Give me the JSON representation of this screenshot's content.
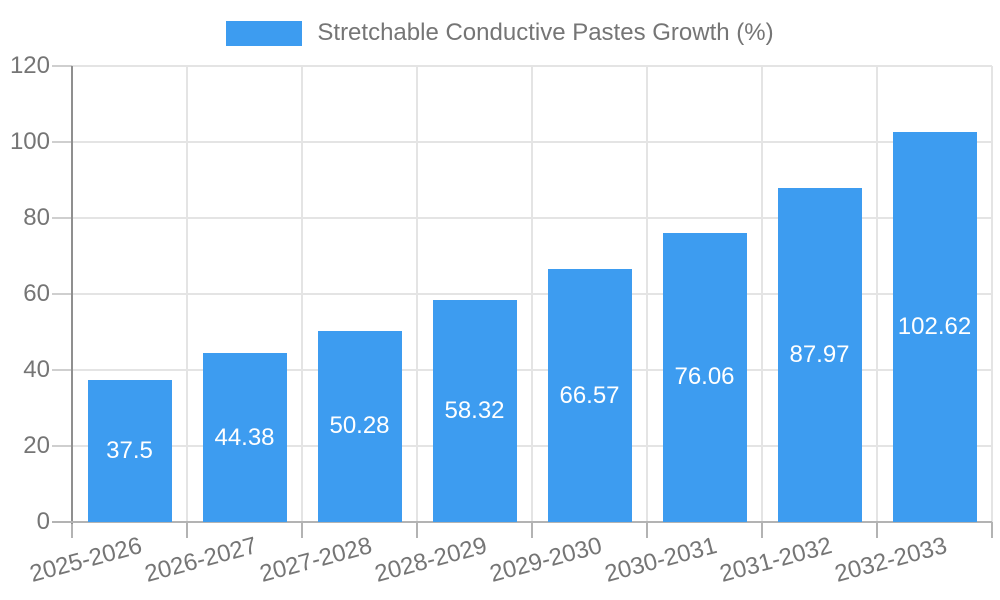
{
  "legend": {
    "label": "Stretchable Conductive Pastes Growth (%)"
  },
  "colors": {
    "bar": "#3d9cf0",
    "grid": "#e4e4e4",
    "y_axis_line": "#8f8f8f",
    "x_axis_line": "#b3b3b3",
    "y_tick": "#cfcfcf",
    "x_tick": "#b3b3b3",
    "axis_text": "#757575",
    "value_text": "#ffffff",
    "background": "#ffffff"
  },
  "chart_data": {
    "type": "bar",
    "title": "Stretchable Conductive Pastes Growth (%)",
    "categories": [
      "2025-2026",
      "2026-2027",
      "2027-2028",
      "2028-2029",
      "2029-2030",
      "2030-2031",
      "2031-2032",
      "2032-2033"
    ],
    "values": [
      37.5,
      44.38,
      50.28,
      58.32,
      66.57,
      76.06,
      87.97,
      102.62
    ],
    "series_name": "Stretchable Conductive Pastes Growth (%)",
    "xlabel": "",
    "ylabel": "",
    "ylim": [
      0,
      120
    ],
    "yticks": [
      0,
      20,
      40,
      60,
      80,
      100,
      120
    ],
    "grid": true,
    "legend_position": "top-center",
    "value_labels": "inside-center",
    "x_tick_rotation_deg": -15
  }
}
